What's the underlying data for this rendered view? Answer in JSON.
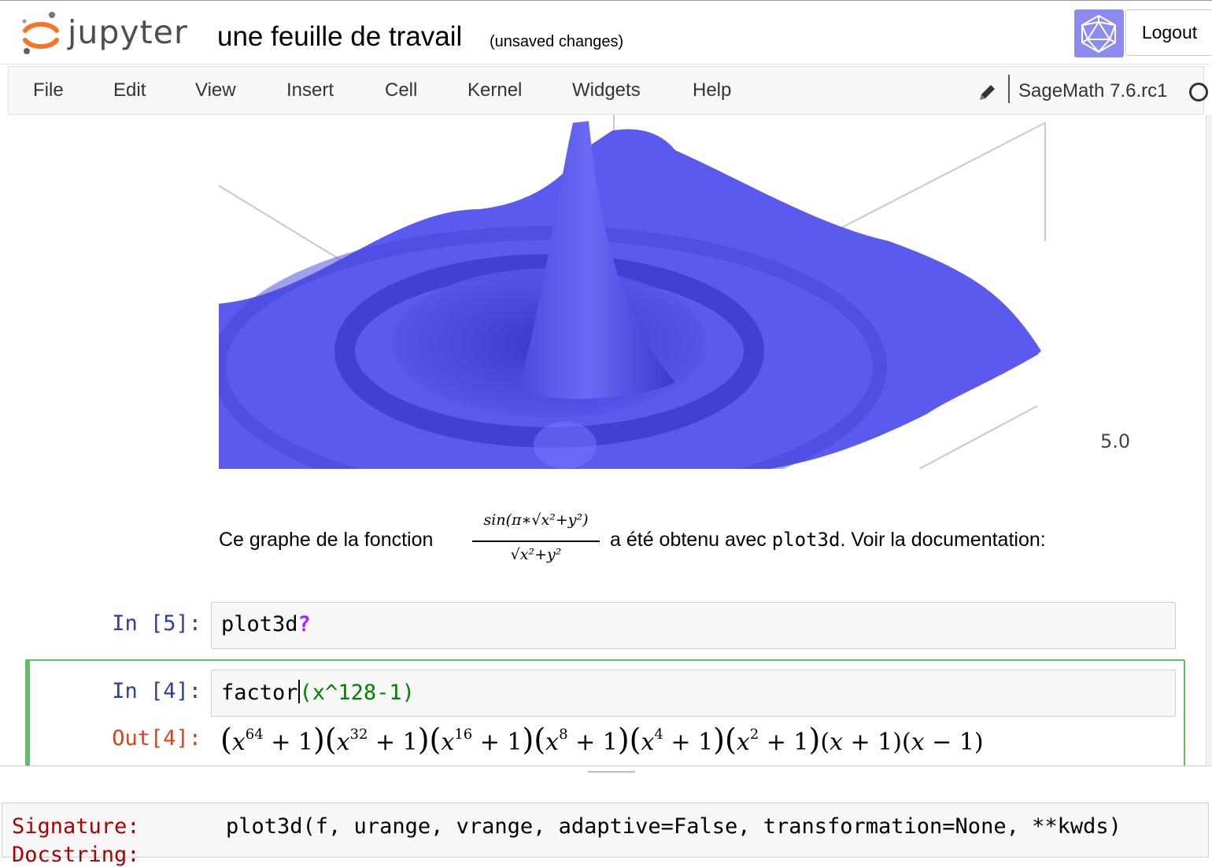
{
  "header": {
    "logo_text": "jupyter",
    "notebook_title": "une feuille de travail",
    "save_status": "(unsaved changes)",
    "logout_label": "Logout"
  },
  "menubar": {
    "items": [
      "File",
      "Edit",
      "View",
      "Insert",
      "Cell",
      "Kernel",
      "Widgets",
      "Help"
    ],
    "kernel_name": "SageMath 7.6.rc1"
  },
  "plot": {
    "axis_label": "5.0",
    "surface_color": "#5a5aef"
  },
  "markdown": {
    "text_before": "Ce graphe de la fonction",
    "formula_numerator": "sin(π∗√x²+y²)",
    "formula_denominator": "√x²+y²",
    "text_after": "a été obtenu avec",
    "code": "plot3d",
    "text_end": ". Voir la documentation:"
  },
  "cells": [
    {
      "prompt": "In [5]:",
      "code_name": "plot3d",
      "code_op": "?"
    },
    {
      "prompt": "In [4]:",
      "code_fn": "factor",
      "code_args": "(x^128-1)",
      "out_prompt": "Out[4]:"
    }
  ],
  "pager": {
    "signature_label": "Signature:",
    "signature_value": "plot3d(f, urange, vrange, adaptive=False, transformation=None, **kwds)",
    "docstring_label": "Docstring:"
  },
  "colors": {
    "accent_selected": "#66bb6a",
    "in_prompt": "#303f9f",
    "out_prompt": "#d84315"
  }
}
